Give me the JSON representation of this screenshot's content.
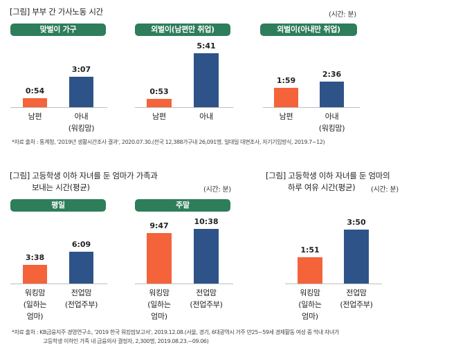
{
  "colors": {
    "husband": "#f4633a",
    "wife": "#2d5389",
    "pill": "#2e7d5b",
    "axis": "#bdbdbd"
  },
  "section1": {
    "title": "[그림] 부부 간 가사노동 시간",
    "unit": "(시간: 분)",
    "source": "*자료 출처 : 통계청, '2019년 생활시간조사 결과', 2020.07.30.(전국 12,388가구내 26,091명, 일대일 대면조사, 자기기입방식, 2019.7~12)"
  },
  "section2": {
    "title_line1": "[그림] 고등학생 이하 자녀를 둔 엄마가 가족과",
    "title_line2": "보내는 시간(평균)",
    "unit": "(시간: 분)",
    "source_line1": "*자료 출처 : KB금융지주 경영연구소, '2019 한국 워킹맘보고서', 2019.12.08.(서울, 경기, 6대광역시 거주 만25~59세 경제활동 여성 중 막내 자녀가",
    "source_line2": "고등학생 이하인 가족 내 금융의사 결정자, 2,300명, 2019.08.23.~09.06)"
  },
  "section3": {
    "title_line1": "[그림] 고등학생 이하 자녀를 둔 엄마의",
    "title_line2": "하루 여유 시간(평균)",
    "unit": "(시간: 분)"
  },
  "chart_data": [
    {
      "type": "bar",
      "title": "맞벌이 가구",
      "ylabel": "시간: 분",
      "ylim": [
        0,
        660
      ],
      "categories": [
        "남편",
        "아내\n(워킹맘)"
      ],
      "value_labels": [
        "0:54",
        "3:07"
      ],
      "values": [
        54,
        187
      ]
    },
    {
      "type": "bar",
      "title": "외벌이(남편만 취업)",
      "ylabel": "시간: 분",
      "ylim": [
        0,
        660
      ],
      "categories": [
        "남편",
        "아내"
      ],
      "value_labels": [
        "0:53",
        "5:41"
      ],
      "values": [
        53,
        341
      ]
    },
    {
      "type": "bar",
      "title": "외벌이(아내만 취업)",
      "ylabel": "시간: 분",
      "ylim": [
        0,
        660
      ],
      "categories": [
        "남편",
        "아내\n(워킹맘)"
      ],
      "value_labels": [
        "1:59",
        "2:36"
      ],
      "values": [
        119,
        156
      ]
    },
    {
      "type": "bar",
      "title": "평일",
      "ylabel": "시간: 분",
      "ylim": [
        0,
        900
      ],
      "categories": [
        "워킹맘\n(일하는\n엄마)",
        "전업맘\n(전업주부)"
      ],
      "value_labels": [
        "3:38",
        "6:09"
      ],
      "values": [
        218,
        369
      ]
    },
    {
      "type": "bar",
      "title": "주말",
      "ylabel": "시간: 분",
      "ylim": [
        0,
        900
      ],
      "categories": [
        "워킹맘\n(일하는\n엄마)",
        "전업맘\n(전업주부)"
      ],
      "value_labels": [
        "9:47",
        "10:38"
      ],
      "values": [
        587,
        638
      ]
    },
    {
      "type": "bar",
      "title": "",
      "ylabel": "시간: 분",
      "ylim": [
        0,
        330
      ],
      "categories": [
        "워킹맘\n(일하는\n엄마)",
        "전업맘\n(전업주부)"
      ],
      "value_labels": [
        "1:51",
        "3:50"
      ],
      "values": [
        111,
        230
      ]
    }
  ]
}
